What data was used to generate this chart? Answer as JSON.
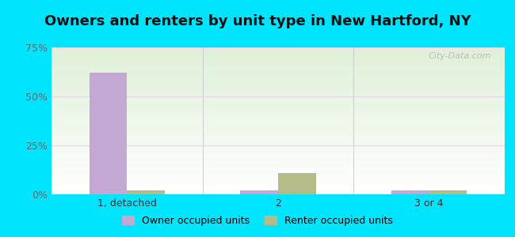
{
  "title": "Owners and renters by unit type in New Hartford, NY",
  "categories": [
    "1, detached",
    "2",
    "3 or 4"
  ],
  "owner_values": [
    62,
    2,
    2
  ],
  "renter_values": [
    2,
    11,
    2
  ],
  "owner_color": "#c4a8d4",
  "renter_color": "#b5bc8a",
  "bar_width": 0.25,
  "ylim": [
    0,
    75
  ],
  "yticks": [
    0,
    25,
    50,
    75
  ],
  "yticklabels": [
    "0%",
    "25%",
    "50%",
    "75%"
  ],
  "background_outer": "#00e5ff",
  "background_inner_top_left": "#dff0d8",
  "background_inner_top_right": "#e8f5f0",
  "background_inner_bottom": "#ffffff",
  "grid_color": "#e8d4e8",
  "title_fontsize": 13,
  "tick_fontsize": 9,
  "legend_fontsize": 9,
  "watermark": "City-Data.com",
  "watermark_color": "#bbbbbb",
  "separator_color": "#cccccc"
}
